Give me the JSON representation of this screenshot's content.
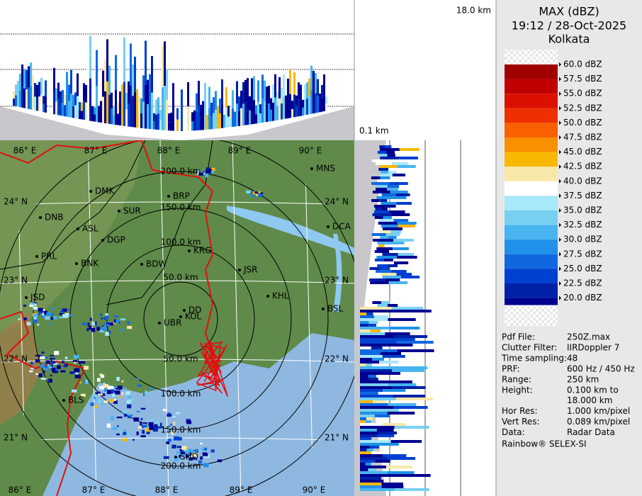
{
  "header": {
    "top_height": "18.0 km",
    "bottom_height": "0.1 km"
  },
  "legend": {
    "title": "MAX (dBZ)",
    "time": "19:12 / 28-Oct-2025",
    "site": "Kolkata",
    "levels": [
      {
        "label": "60.0 dBZ",
        "color": "#a00000"
      },
      {
        "label": "57.5 dBZ",
        "color": "#c00000"
      },
      {
        "label": "55.0 dBZ",
        "color": "#dc1000"
      },
      {
        "label": "52.5 dBZ",
        "color": "#ee3000"
      },
      {
        "label": "50.0 dBZ",
        "color": "#f86000"
      },
      {
        "label": "47.5 dBZ",
        "color": "#f89000"
      },
      {
        "label": "45.0 dBZ",
        "color": "#f8b800"
      },
      {
        "label": "42.5 dBZ",
        "color": "#f8e8a8"
      },
      {
        "label": "40.0 dBZ",
        "color": "#ffffff"
      },
      {
        "label": "37.5 dBZ",
        "color": "#a8e8f8"
      },
      {
        "label": "35.0 dBZ",
        "color": "#78d0f0"
      },
      {
        "label": "32.5 dBZ",
        "color": "#48b4f0"
      },
      {
        "label": "30.0 dBZ",
        "color": "#2090e8"
      },
      {
        "label": "27.5 dBZ",
        "color": "#1068e0"
      },
      {
        "label": "25.0 dBZ",
        "color": "#0040d0"
      },
      {
        "label": "22.5 dBZ",
        "color": "#0020a8"
      },
      {
        "label": "20.0 dBZ",
        "color": "#000090"
      }
    ]
  },
  "info": {
    "rows": [
      [
        "Pdf File:",
        "250Z.max"
      ],
      [
        "Clutter Filter:",
        "IIRDoppler 7"
      ],
      [
        "Time sampling:48"
      ],
      [
        "PRF:",
        "600 Hz / 450 Hz"
      ],
      [
        "Range:",
        "250 km"
      ],
      [
        "Height:",
        "0.100 km to",
        "18.000 km"
      ],
      [
        "Hor Res:",
        "1.000 km/pixel"
      ],
      [
        "Vert Res:",
        "0.089 km/pixel"
      ],
      [
        "Data:",
        "Radar Data"
      ]
    ],
    "footer": "Rainbow® SELEX-SI"
  },
  "map": {
    "lon_top": [
      "86° E",
      "87° E",
      "88° E",
      "89° E",
      "90° E"
    ],
    "lon_bottom": [
      "86° E",
      "87° E",
      "88° E",
      "89° E",
      "90° E"
    ],
    "lat_left": [
      "24° N",
      "23° N",
      "22° N",
      "21° N"
    ],
    "lat_right": [
      "24° N",
      "23° N",
      "22° N",
      "21° N"
    ],
    "rings_north": [
      "200.0 km",
      "150.0 km",
      "100.0 km",
      "50.0 km"
    ],
    "rings_south": [
      "50.0 km",
      "100.0 km",
      "150.0 km",
      "200.0 km"
    ],
    "cities": [
      "MNS",
      "DMK",
      "BRP",
      "SUR",
      "DNB",
      "ASL",
      "DGP",
      "DCA",
      "KRG",
      "PRL",
      "BNK",
      "BDW",
      "JSR",
      "KHL",
      "JSD",
      "DD",
      "KOL",
      "UBR",
      "BSL",
      "BLS",
      "SHD"
    ]
  }
}
